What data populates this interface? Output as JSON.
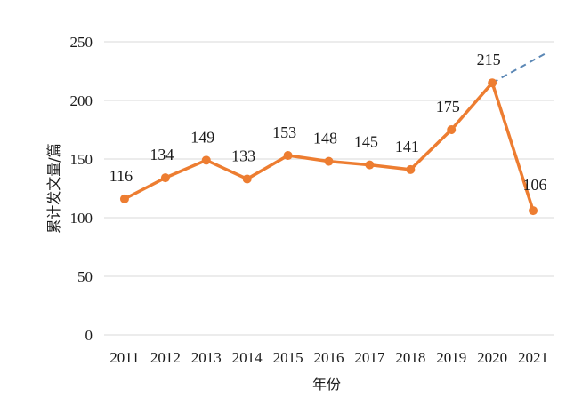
{
  "chart_data": {
    "type": "line",
    "title": "",
    "xlabel": "年份",
    "ylabel": "累计发文量/篇",
    "ylim": [
      0,
      250
    ],
    "yticks": [
      0,
      50,
      100,
      150,
      200,
      250
    ],
    "grid": true,
    "categories": [
      "2011",
      "2012",
      "2013",
      "2014",
      "2015",
      "2016",
      "2017",
      "2018",
      "2019",
      "2020",
      "2021"
    ],
    "series": [
      {
        "values": [
          116,
          134,
          149,
          133,
          153,
          148,
          145,
          141,
          175,
          215,
          106
        ],
        "color": "#ED7D31",
        "labels": [
          "116",
          "134",
          "149",
          "133",
          "153",
          "148",
          "145",
          "141",
          "175",
          "215",
          "106"
        ]
      }
    ],
    "trend_projection": {
      "from": [
        "2020",
        215
      ],
      "to": [
        "2021",
        240
      ],
      "style": "dashed",
      "color": "#5B87B5"
    }
  }
}
